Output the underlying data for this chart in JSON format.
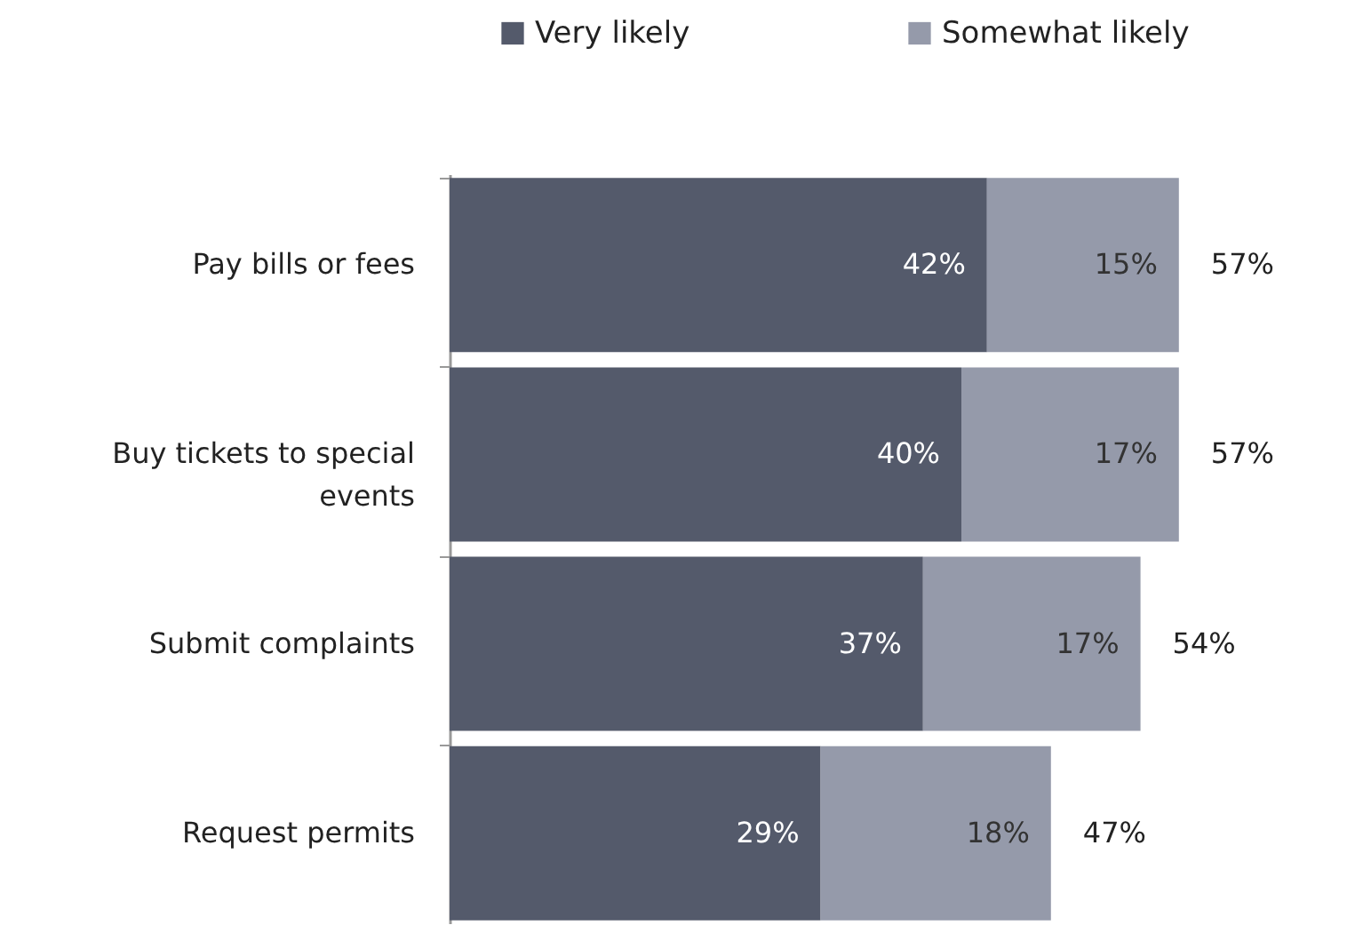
{
  "chart_data": {
    "type": "bar",
    "orientation": "horizontal",
    "stacked": true,
    "categories": [
      "Pay bills or fees",
      "Buy tickets to special events",
      "Submit complaints",
      "Request permits"
    ],
    "series": [
      {
        "name": "Very likely",
        "color": "#545a6b",
        "values": [
          42,
          40,
          37,
          29
        ],
        "value_labels": [
          "42%",
          "40%",
          "37%",
          "29%"
        ]
      },
      {
        "name": "Somewhat likely",
        "color": "#959aaa",
        "values": [
          15,
          17,
          17,
          18
        ],
        "value_labels": [
          "15%",
          "17%",
          "17%",
          "18%"
        ]
      }
    ],
    "totals": [
      "57%",
      "57%",
      "54%",
      "47%"
    ],
    "xlim": [
      0,
      70
    ],
    "tick_labels": "y",
    "legend": "top"
  }
}
